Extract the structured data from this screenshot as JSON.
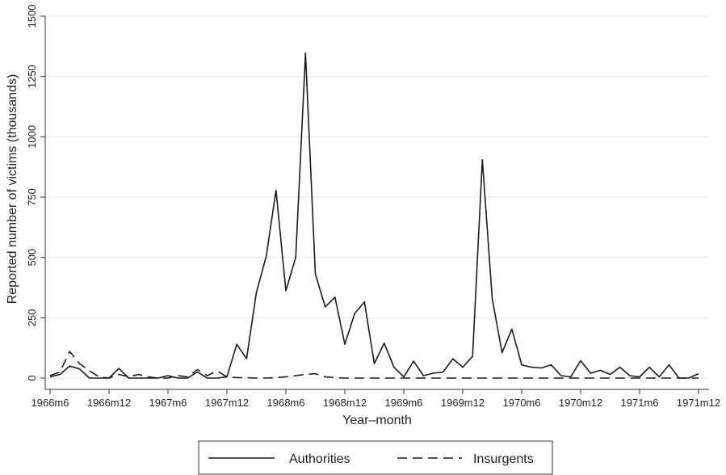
{
  "chart_data": {
    "type": "line",
    "xlabel": "Year–month",
    "ylabel": "Reported number of victims (thousands)",
    "ylim": [
      0,
      1500
    ],
    "yticks": [
      0,
      250,
      500,
      750,
      1000,
      1250,
      1500
    ],
    "x_start": "1966m6",
    "xticks": [
      "1966m6",
      "1966m12",
      "1967m6",
      "1967m12",
      "1968m6",
      "1968m12",
      "1969m6",
      "1969m12",
      "1970m6",
      "1970m12",
      "1971m6",
      "1971m12"
    ],
    "grid": true,
    "legend_position": "bottom",
    "series": [
      {
        "name": "Authorities",
        "dash": "solid",
        "values": [
          5,
          15,
          50,
          38,
          0,
          0,
          0,
          40,
          0,
          0,
          0,
          0,
          10,
          0,
          0,
          25,
          0,
          0,
          5,
          140,
          80,
          355,
          505,
          778,
          362,
          500,
          1347,
          432,
          295,
          335,
          140,
          268,
          315,
          60,
          145,
          45,
          5,
          70,
          10,
          20,
          25,
          80,
          45,
          90,
          905,
          330,
          105,
          203,
          55,
          45,
          42,
          55,
          10,
          5,
          72,
          20,
          32,
          15,
          45,
          10,
          5,
          45,
          5,
          55,
          0,
          0,
          18
        ]
      },
      {
        "name": "Insurgents",
        "dash": "dashed",
        "values": [
          10,
          25,
          110,
          60,
          30,
          5,
          0,
          15,
          5,
          15,
          5,
          0,
          0,
          10,
          5,
          35,
          10,
          30,
          5,
          2,
          1,
          0,
          0,
          2,
          5,
          10,
          15,
          18,
          5,
          2,
          0,
          0,
          0,
          0,
          0,
          0,
          0,
          0,
          0,
          0,
          0,
          0,
          0,
          0,
          0,
          0,
          0,
          0,
          0,
          0,
          0,
          0,
          0,
          0,
          0,
          0,
          0,
          0,
          0,
          0,
          0,
          0,
          0,
          0,
          0,
          0,
          0
        ]
      }
    ]
  }
}
